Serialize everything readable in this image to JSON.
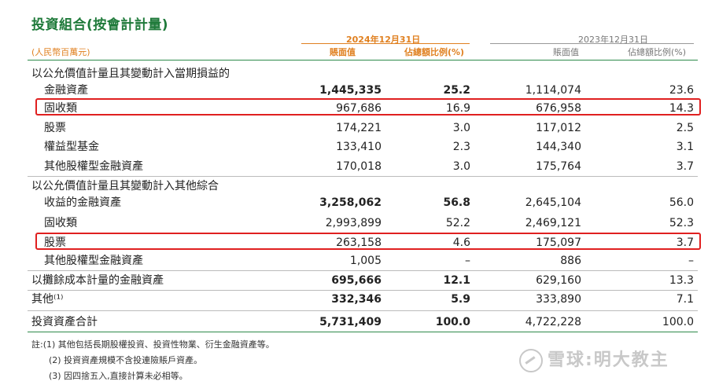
{
  "title": "投資組合(按會計計量)",
  "header": {
    "unit": "(人民幣百萬元)",
    "year_2024": "2024年12月31日",
    "year_2023": "2023年12月31日",
    "col_book_value": "賬面值",
    "col_ratio": "佔總額比例(%)"
  },
  "rows": [
    {
      "label": "以公允價值計量且其變動計入當期損益的",
      "v1": "",
      "v2": "",
      "v3": "",
      "v4": ""
    },
    {
      "label": "金融資產",
      "v1": "1,445,335",
      "v2": "25.2",
      "v3": "1,114,074",
      "v4": "23.6"
    },
    {
      "label": "固收類",
      "v1": "967,686",
      "v2": "16.9",
      "v3": "676,958",
      "v4": "14.3"
    },
    {
      "label": "股票",
      "v1": "174,221",
      "v2": "3.0",
      "v3": "117,012",
      "v4": "2.5"
    },
    {
      "label": "權益型基金",
      "v1": "133,410",
      "v2": "2.3",
      "v3": "144,340",
      "v4": "3.1"
    },
    {
      "label": "其他股權型金融資產",
      "v1": "170,018",
      "v2": "3.0",
      "v3": "175,764",
      "v4": "3.7"
    },
    {
      "label": "以公允價值計量且其變動計入其他綜合",
      "v1": "",
      "v2": "",
      "v3": "",
      "v4": ""
    },
    {
      "label": "收益的金融資產",
      "v1": "3,258,062",
      "v2": "56.8",
      "v3": "2,645,104",
      "v4": "56.0"
    },
    {
      "label": "固收類",
      "v1": "2,993,899",
      "v2": "52.2",
      "v3": "2,469,121",
      "v4": "52.3"
    },
    {
      "label": "股票",
      "v1": "263,158",
      "v2": "4.6",
      "v3": "175,097",
      "v4": "3.7"
    },
    {
      "label": "其他股權型金融資產",
      "v1": "1,005",
      "v2": "–",
      "v3": "886",
      "v4": "–"
    },
    {
      "label": "以攤餘成本計量的金融資產",
      "v1": "695,666",
      "v2": "12.1",
      "v3": "629,160",
      "v4": "13.3"
    },
    {
      "label": "其他⁽¹⁾",
      "v1": "332,346",
      "v2": "5.9",
      "v3": "333,890",
      "v4": "7.1"
    },
    {
      "label": "投資資產合計",
      "v1": "5,731,409",
      "v2": "100.0",
      "v3": "4,722,228",
      "v4": "100.0"
    }
  ],
  "notes": [
    "註:(1) 其他包括長期股權投資、投資性物業、衍生金融資產等。",
    "(2) 投資資產規模不含投連險賬戶資產。",
    "(3) 因四捨五入,直接計算未必相等。"
  ],
  "watermark": "雪球:明大教主"
}
